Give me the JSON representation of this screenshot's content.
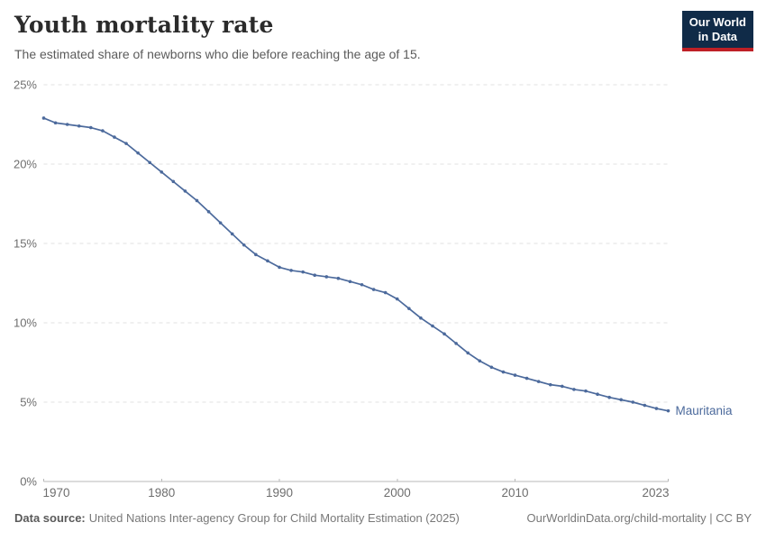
{
  "header": {
    "title": "Youth mortality rate",
    "subtitle": "The estimated share of newborns who die before reaching the age of 15.",
    "logo": {
      "line1": "Our World",
      "line2": "in Data",
      "bg_color": "#102b48",
      "stripe_color": "#be2026"
    }
  },
  "footer": {
    "source_label": "Data source:",
    "source_text": "United Nations Inter-agency Group for Child Mortality Estimation (2025)",
    "link_text": "OurWorldinData.org/child-mortality | CC BY"
  },
  "chart_data": {
    "type": "line",
    "title": "Youth mortality rate",
    "entity": "Mauritania",
    "unit": "%",
    "line_color": "#4c6a9c",
    "grid": true,
    "legend_position": "end-of-line-label",
    "ylim": [
      0,
      25
    ],
    "yticks": [
      0,
      5,
      10,
      15,
      20,
      25
    ],
    "ytick_labels": [
      "0%",
      "5%",
      "10%",
      "15%",
      "20%",
      "25%"
    ],
    "xticks": [
      1970,
      1980,
      1990,
      2000,
      2010,
      2023
    ],
    "xtick_labels": [
      "1970",
      "1980",
      "1990",
      "2000",
      "2010",
      "2023"
    ],
    "x": [
      1970,
      1971,
      1972,
      1973,
      1974,
      1975,
      1976,
      1977,
      1978,
      1979,
      1980,
      1981,
      1982,
      1983,
      1984,
      1985,
      1986,
      1987,
      1988,
      1989,
      1990,
      1991,
      1992,
      1993,
      1994,
      1995,
      1996,
      1997,
      1998,
      1999,
      2000,
      2001,
      2002,
      2003,
      2004,
      2005,
      2006,
      2007,
      2008,
      2009,
      2010,
      2011,
      2012,
      2013,
      2014,
      2015,
      2016,
      2017,
      2018,
      2019,
      2020,
      2021,
      2022,
      2023
    ],
    "values": [
      22.9,
      22.6,
      22.5,
      22.4,
      22.3,
      22.1,
      21.7,
      21.3,
      20.7,
      20.1,
      19.5,
      18.9,
      18.3,
      17.7,
      17.0,
      16.3,
      15.6,
      14.9,
      14.3,
      13.9,
      13.5,
      13.3,
      13.2,
      13.0,
      12.9,
      12.8,
      12.6,
      12.4,
      12.1,
      11.9,
      11.5,
      10.9,
      10.3,
      9.8,
      9.3,
      8.7,
      8.1,
      7.6,
      7.2,
      6.9,
      6.7,
      6.5,
      6.3,
      6.1,
      6.0,
      5.8,
      5.7,
      5.5,
      5.3,
      5.15,
      5.0,
      4.8,
      4.6,
      4.45
    ]
  }
}
